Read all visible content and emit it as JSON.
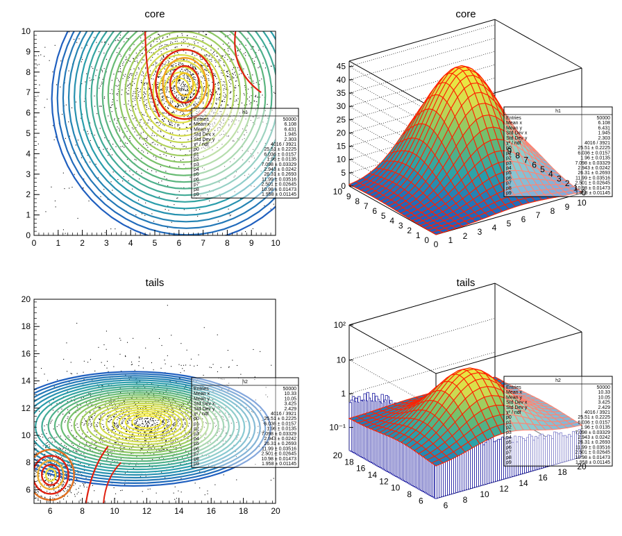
{
  "chart_data": [
    {
      "type": "scatter",
      "title": "core",
      "xlim": [
        0,
        10
      ],
      "ylim": [
        0,
        10
      ],
      "xticks": [
        "0",
        "1",
        "2",
        "3",
        "4",
        "5",
        "6",
        "7",
        "8",
        "9",
        "10"
      ],
      "yticks": [
        "0",
        "1",
        "2",
        "3",
        "4",
        "5",
        "6",
        "7",
        "8",
        "9",
        "10"
      ],
      "contour_center": [
        6.036,
        7.098
      ],
      "fit_center": [
        6.036,
        7.098
      ],
      "stats": {
        "title": "h1",
        "rows": [
          {
            "k": "Entries",
            "v": "50000"
          },
          {
            "k": "Mean x",
            "v": "6.108"
          },
          {
            "k": "Mean y",
            "v": "6.431"
          },
          {
            "k": "Std Dev x",
            "v": "1.945"
          },
          {
            "k": "Std Dev y",
            "v": "2.303"
          },
          {
            "k": "χ² / ndf",
            "v": "4016 / 3921"
          },
          {
            "k": "p0",
            "v": "25.51 ± 0.2225"
          },
          {
            "k": "p1",
            "v": "6.036 ± 0.0157"
          },
          {
            "k": "p2",
            "v": "1.96 ± 0.0135"
          },
          {
            "k": "p3",
            "v": "7.098 ± 0.03329"
          },
          {
            "k": "p4",
            "v": "2.943 ± 0.0242"
          },
          {
            "k": "p5",
            "v": "26.31 ± 0.2693"
          },
          {
            "k": "p6",
            "v": "11.99 ± 0.03516"
          },
          {
            "k": "p7",
            "v": "2.501 ± 0.02645"
          },
          {
            "k": "p8",
            "v": "10.98 ± 0.01473"
          },
          {
            "k": "p9",
            "v": "1.958 ± 0.01145"
          }
        ]
      }
    },
    {
      "type": "surface",
      "title": "core",
      "zticks": [
        "0",
        "5",
        "10",
        "15",
        "20",
        "25",
        "30",
        "35",
        "40",
        "45"
      ],
      "zmax": 47,
      "xticks": [
        "0",
        "1",
        "2",
        "3",
        "4",
        "5",
        "6",
        "7",
        "8",
        "9",
        "10"
      ],
      "yticks": [
        "0",
        "1",
        "2",
        "3",
        "4",
        "5",
        "6",
        "7",
        "8",
        "9",
        "10"
      ],
      "x_axis_ticks": [
        "0",
        "1",
        "2",
        "3",
        "4",
        "5",
        "6",
        "7",
        "8",
        "9"
      ],
      "y_axis_ticks": [
        "0",
        "1",
        "2",
        "3",
        "4",
        "5",
        "6",
        "7",
        "8",
        "9",
        "10"
      ],
      "stats": {
        "title": "h1",
        "rows": [
          {
            "k": "Entries",
            "v": "50000"
          },
          {
            "k": "Mean x",
            "v": "6.108"
          },
          {
            "k": "Mean y",
            "v": "6.431"
          },
          {
            "k": "Std Dev x",
            "v": "1.945"
          },
          {
            "k": "Std Dev y",
            "v": "2.303"
          },
          {
            "k": "χ² / ndf",
            "v": "4016 / 3921"
          },
          {
            "k": "p0",
            "v": "25.51 ± 0.2225"
          },
          {
            "k": "p1",
            "v": "6.036 ± 0.0157"
          },
          {
            "k": "p2",
            "v": "1.96 ± 0.0135"
          },
          {
            "k": "p3",
            "v": "7.098 ± 0.03329"
          },
          {
            "k": "p4",
            "v": "2.943 ± 0.0242"
          },
          {
            "k": "p5",
            "v": "26.31 ± 0.2693"
          },
          {
            "k": "p6",
            "v": "11.99 ± 0.03516"
          },
          {
            "k": "p7",
            "v": "2.501 ± 0.02645"
          },
          {
            "k": "p8",
            "v": "10.98 ± 0.01473"
          },
          {
            "k": "p9",
            "v": "1.958 ± 0.01145"
          }
        ]
      }
    },
    {
      "type": "scatter",
      "title": "tails",
      "xlim": [
        5,
        20
      ],
      "ylim": [
        5,
        20
      ],
      "xticks": [
        "6",
        "8",
        "10",
        "12",
        "14",
        "16",
        "18",
        "20"
      ],
      "yticks": [
        "6",
        "8",
        "10",
        "12",
        "14",
        "16",
        "18",
        "20"
      ],
      "contour_center": [
        11.99,
        10.98
      ],
      "fit_center": [
        6.036,
        7.098
      ],
      "stats": {
        "title": "h2",
        "rows": [
          {
            "k": "Entries",
            "v": "50000"
          },
          {
            "k": "Mean x",
            "v": "10.33"
          },
          {
            "k": "Mean y",
            "v": "10.05"
          },
          {
            "k": "Std Dev x",
            "v": "3.425"
          },
          {
            "k": "Std Dev y",
            "v": "2.429"
          },
          {
            "k": "χ² / ndf",
            "v": "4016 / 3921"
          },
          {
            "k": "p0",
            "v": "25.51 ± 0.2225"
          },
          {
            "k": "p1",
            "v": "6.036 ± 0.0157"
          },
          {
            "k": "p2",
            "v": "1.96 ± 0.0135"
          },
          {
            "k": "p3",
            "v": "7.098 ± 0.03329"
          },
          {
            "k": "p4",
            "v": "2.943 ± 0.0242"
          },
          {
            "k": "p5",
            "v": "26.31 ± 0.2693"
          },
          {
            "k": "p6",
            "v": "11.99 ± 0.03516"
          },
          {
            "k": "p7",
            "v": "2.501 ± 0.02645"
          },
          {
            "k": "p8",
            "v": "10.98 ± 0.01473"
          },
          {
            "k": "p9",
            "v": "1.958 ± 0.01145"
          }
        ]
      }
    },
    {
      "type": "surface",
      "title": "tails",
      "log_z": true,
      "zticks": [
        "10⁻¹",
        "1",
        "10",
        "10²"
      ],
      "x_axis_ticks": [
        "6",
        "8",
        "10",
        "12",
        "14",
        "16",
        "18",
        "20"
      ],
      "y_axis_ticks": [
        "6",
        "8",
        "10",
        "12",
        "14",
        "16",
        "18",
        "20"
      ],
      "stats": {
        "title": "h2",
        "rows": [
          {
            "k": "Entries",
            "v": "50000"
          },
          {
            "k": "Mean x",
            "v": "10.33"
          },
          {
            "k": "Mean y",
            "v": "10.05"
          },
          {
            "k": "Std Dev x",
            "v": "3.425"
          },
          {
            "k": "Std Dev y",
            "v": "2.429"
          },
          {
            "k": "χ² / ndf",
            "v": "4016 / 3921"
          },
          {
            "k": "p0",
            "v": "25.51 ± 0.2225"
          },
          {
            "k": "p1",
            "v": "6.036 ± 0.0157"
          },
          {
            "k": "p2",
            "v": "1.96 ± 0.0135"
          },
          {
            "k": "p3",
            "v": "7.098 ± 0.03329"
          },
          {
            "k": "p4",
            "v": "2.943 ± 0.0242"
          },
          {
            "k": "p5",
            "v": "26.31 ± 0.2693"
          },
          {
            "k": "p6",
            "v": "11.99 ± 0.03516"
          },
          {
            "k": "p7",
            "v": "2.501 ± 0.02645"
          },
          {
            "k": "p8",
            "v": "10.98 ± 0.01473"
          },
          {
            "k": "p9",
            "v": "1.958 ± 0.01145"
          }
        ]
      }
    }
  ],
  "colors": {
    "contour_blue": "#1f5fbf",
    "contour_teal": "#2aa0a0",
    "contour_yellow": "#f0e040",
    "fit_red": "#e02010",
    "surface_red": "#ff2000",
    "hist_blue": "#1a1aa0"
  }
}
